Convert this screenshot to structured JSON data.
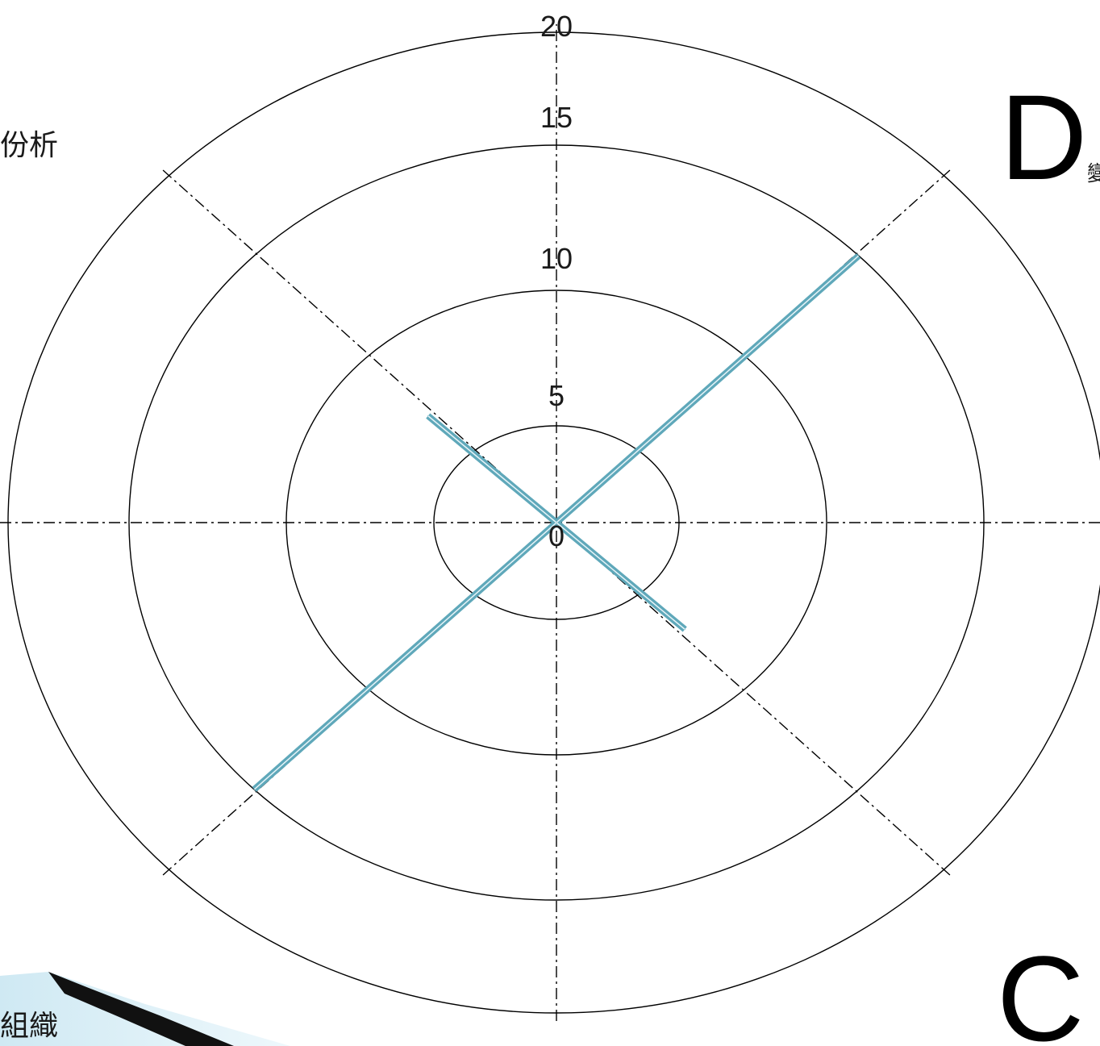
{
  "chart_data": {
    "type": "radar",
    "axes_count": 8,
    "radial_ticks": [
      "0",
      "5",
      "10",
      "15",
      "20"
    ],
    "rmax": 20,
    "values": [
      0,
      15,
      0,
      7,
      0,
      15,
      0,
      7
    ],
    "fill_color": "#8ecad9",
    "stroke_color": "#5fa8ba",
    "grid": true
  },
  "side_labels": {
    "left_top": "份析",
    "left_bottom": "組織",
    "right_top_letter": "D",
    "right_top_small": "變",
    "right_bottom_letter": "C"
  }
}
